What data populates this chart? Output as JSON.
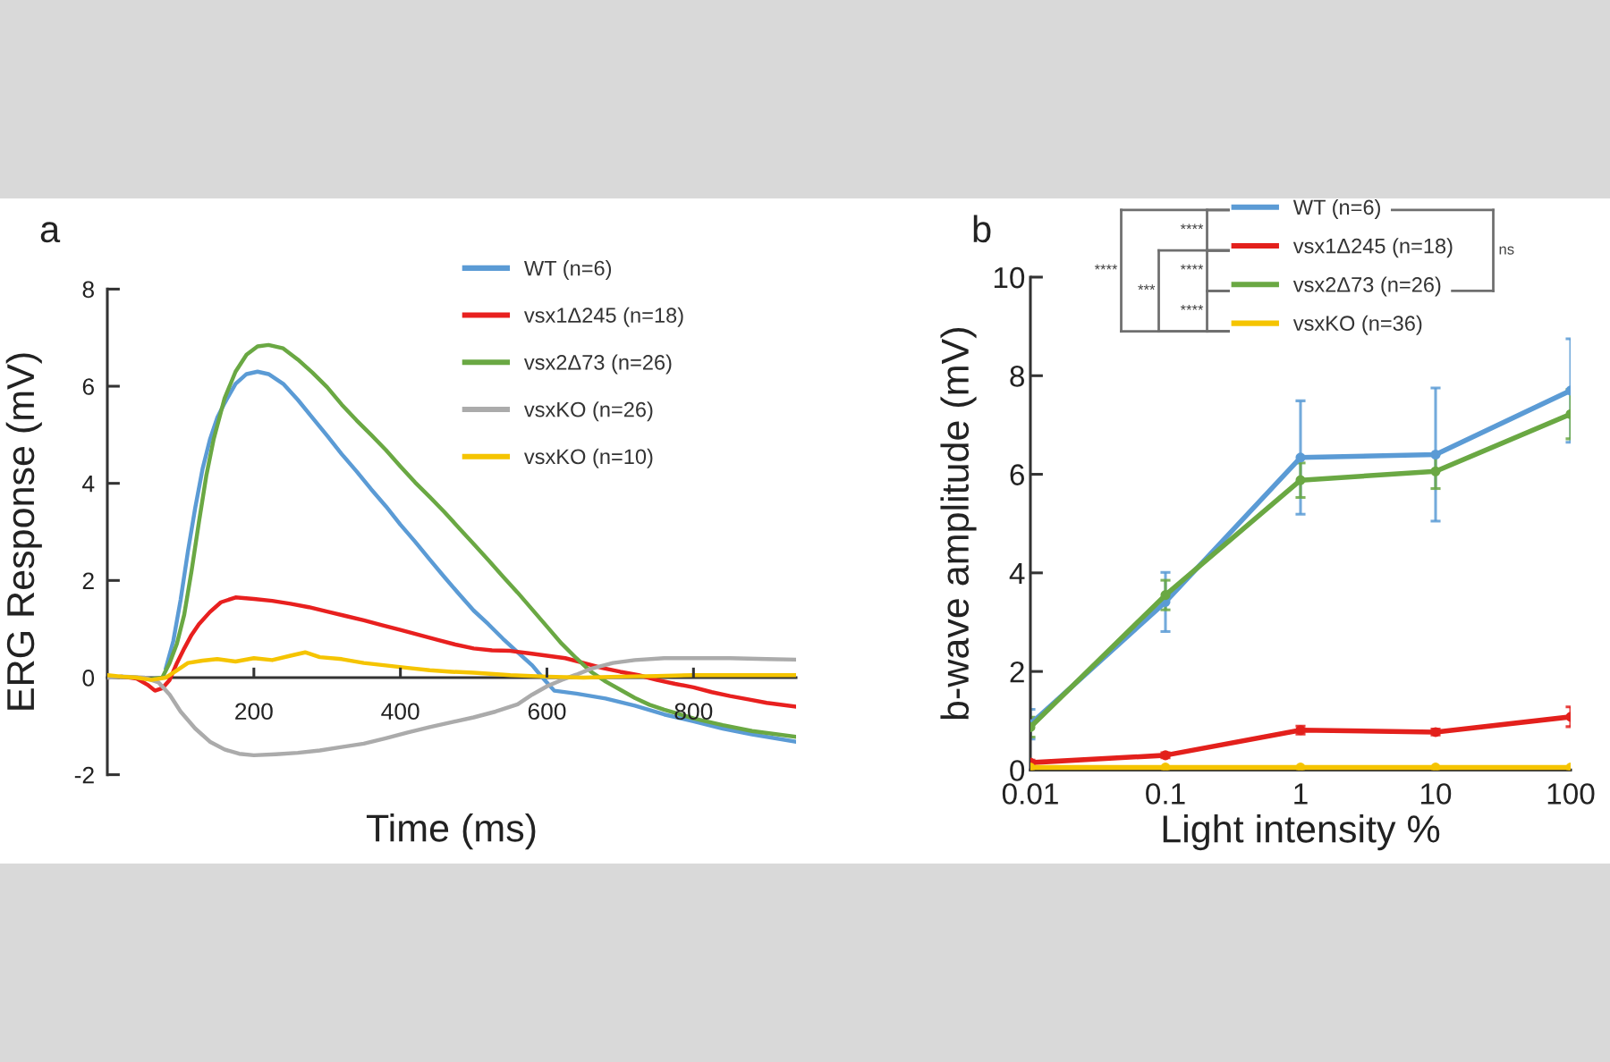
{
  "chart_data": [
    {
      "type": "line",
      "title": "a",
      "xlabel": "Time (ms)",
      "ylabel": "ERG Response (mV)",
      "xlim": [
        0,
        940
      ],
      "ylim": [
        -2,
        8
      ],
      "xticks": [
        200,
        400,
        600,
        800
      ],
      "yticks": [
        -2,
        0,
        2,
        4,
        6,
        8
      ],
      "legend": "top right",
      "series": [
        {
          "name": "WT (n=6)",
          "color": "#5b9bd5",
          "x": [
            80,
            90,
            100,
            110,
            120,
            130,
            140,
            150,
            160,
            175,
            190,
            205,
            220,
            240,
            260,
            280,
            300,
            320,
            340,
            360,
            380,
            400,
            420,
            440,
            460,
            480,
            500,
            520,
            540,
            560,
            580,
            595,
            610,
            640,
            680,
            720,
            760,
            800,
            840,
            880,
            940
          ],
          "values": [
            0.2,
            0.75,
            1.6,
            2.6,
            3.5,
            4.3,
            4.9,
            5.35,
            5.65,
            6.05,
            6.25,
            6.3,
            6.25,
            6.05,
            5.72,
            5.35,
            4.98,
            4.6,
            4.25,
            3.88,
            3.53,
            3.15,
            2.8,
            2.43,
            2.07,
            1.72,
            1.38,
            1.1,
            0.8,
            0.52,
            0.25,
            -0.02,
            -0.27,
            -0.33,
            -0.43,
            -0.58,
            -0.76,
            -0.9,
            -1.05,
            -1.17,
            -1.32
          ]
        },
        {
          "name": "vsx1Δ245 (n=18)",
          "color": "#e8201f",
          "x": [
            0,
            20,
            40,
            55,
            65,
            75,
            85,
            95,
            105,
            115,
            125,
            140,
            155,
            175,
            200,
            225,
            250,
            275,
            300,
            325,
            350,
            375,
            400,
            425,
            450,
            475,
            500,
            525,
            550,
            575,
            600,
            625,
            650,
            675,
            700,
            725,
            750,
            775,
            800,
            825,
            850,
            875,
            900,
            940
          ],
          "values": [
            0,
            0.02,
            -0.02,
            -0.15,
            -0.27,
            -0.22,
            -0.05,
            0.3,
            0.6,
            0.88,
            1.1,
            1.35,
            1.55,
            1.65,
            1.62,
            1.58,
            1.52,
            1.45,
            1.36,
            1.27,
            1.18,
            1.08,
            0.98,
            0.88,
            0.78,
            0.68,
            0.6,
            0.56,
            0.55,
            0.5,
            0.45,
            0.4,
            0.3,
            0.2,
            0.12,
            0.05,
            -0.05,
            -0.13,
            -0.2,
            -0.3,
            -0.38,
            -0.45,
            -0.52,
            -0.6
          ]
        },
        {
          "name": "vsx2Δ73 (n=26)",
          "color": "#6aa843",
          "x": [
            0,
            20,
            40,
            60,
            75,
            85,
            95,
            105,
            115,
            125,
            135,
            145,
            160,
            175,
            190,
            205,
            220,
            240,
            260,
            280,
            300,
            320,
            340,
            360,
            380,
            400,
            420,
            440,
            460,
            480,
            500,
            520,
            540,
            560,
            580,
            600,
            620,
            640,
            660,
            680,
            700,
            720,
            740,
            760,
            780,
            800,
            840,
            880,
            940
          ],
          "values": [
            0,
            0.02,
            0,
            -0.03,
            0,
            0.3,
            0.7,
            1.3,
            2.2,
            3.2,
            4.15,
            4.9,
            5.75,
            6.3,
            6.65,
            6.82,
            6.85,
            6.78,
            6.55,
            6.28,
            5.98,
            5.62,
            5.3,
            5.0,
            4.69,
            4.35,
            4.02,
            3.72,
            3.41,
            3.08,
            2.75,
            2.42,
            2.08,
            1.75,
            1.4,
            1.05,
            0.7,
            0.4,
            0.12,
            -0.08,
            -0.25,
            -0.42,
            -0.56,
            -0.66,
            -0.75,
            -0.84,
            -0.98,
            -1.1,
            -1.22
          ]
        },
        {
          "name": "vsxKO (n=26)",
          "color": "#ababab",
          "x": [
            0,
            25,
            50,
            70,
            85,
            100,
            120,
            140,
            160,
            180,
            200,
            230,
            260,
            290,
            320,
            350,
            380,
            410,
            440,
            470,
            500,
            530,
            560,
            580,
            600,
            620,
            640,
            660,
            690,
            720,
            760,
            800,
            850,
            900,
            940
          ],
          "values": [
            0,
            0.02,
            0,
            -0.1,
            -0.35,
            -0.7,
            -1.05,
            -1.32,
            -1.48,
            -1.57,
            -1.6,
            -1.58,
            -1.55,
            -1.5,
            -1.43,
            -1.36,
            -1.25,
            -1.13,
            -1.02,
            -0.92,
            -0.82,
            -0.7,
            -0.55,
            -0.35,
            -0.18,
            -0.05,
            0.06,
            0.18,
            0.3,
            0.36,
            0.4,
            0.4,
            0.4,
            0.38,
            0.37
          ]
        },
        {
          "name": "vsxKO (n=10)",
          "color": "#f5c400",
          "x": [
            0,
            20,
            40,
            60,
            80,
            95,
            110,
            130,
            150,
            175,
            200,
            225,
            250,
            270,
            290,
            320,
            350,
            380,
            410,
            440,
            470,
            500,
            550,
            600,
            650,
            700,
            750,
            800,
            850,
            900,
            940
          ],
          "values": [
            0.05,
            0.02,
            0,
            -0.05,
            0,
            0.15,
            0.3,
            0.35,
            0.38,
            0.33,
            0.4,
            0.36,
            0.45,
            0.52,
            0.42,
            0.38,
            0.3,
            0.25,
            0.2,
            0.15,
            0.12,
            0.1,
            0.05,
            0.02,
            0,
            0.02,
            0.03,
            0.05,
            0.05,
            0.05,
            0.05
          ]
        }
      ]
    },
    {
      "type": "line",
      "title": "b",
      "xlabel": "Light intensity %",
      "ylabel": "b-wave amplitude (mV)",
      "x": [
        0.01,
        0.1,
        1,
        10,
        100
      ],
      "log": "x",
      "xlim": [
        0.01,
        100
      ],
      "ylim": [
        0,
        10
      ],
      "xticks": [
        0.01,
        0.1,
        1,
        10,
        100
      ],
      "yticks": [
        0,
        2,
        4,
        6,
        8,
        10
      ],
      "legend": "top",
      "marker": "circle",
      "series": [
        {
          "name": "WT (n=6)",
          "color": "#5b9bd5",
          "values": [
            0.93,
            3.41,
            6.34,
            6.4,
            7.7
          ],
          "errors": [
            0.3,
            0.6,
            1.15,
            1.35,
            1.05
          ]
        },
        {
          "name": "vsx1Δ245 (n=18)",
          "color": "#e3201c",
          "values": [
            0.15,
            0.3,
            0.81,
            0.77,
            1.08
          ],
          "errors": [
            0.05,
            0.05,
            0.08,
            0.06,
            0.2
          ]
        },
        {
          "name": "vsx2Δ73 (n=26)",
          "color": "#6aa843",
          "values": [
            0.87,
            3.55,
            5.88,
            6.06,
            7.22
          ],
          "errors": [
            0.2,
            0.3,
            0.35,
            0.35,
            0.5
          ]
        },
        {
          "name": "vsxKO (n=36)",
          "color": "#f5c400",
          "values": [
            0.05,
            0.05,
            0.05,
            0.05,
            0.05
          ]
        }
      ],
      "annotations": [
        "****",
        "***",
        "****",
        "****",
        "****",
        "ns"
      ]
    }
  ]
}
